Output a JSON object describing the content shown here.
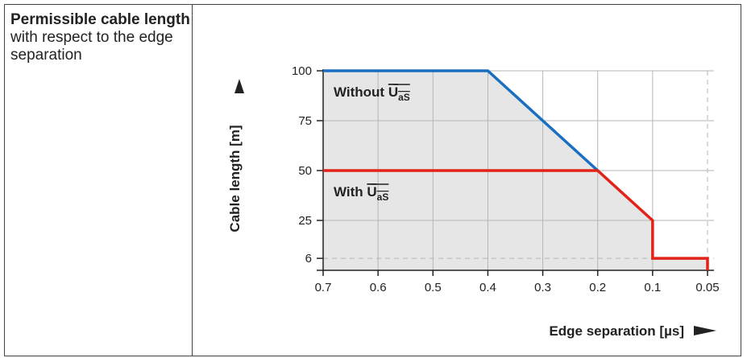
{
  "caption": {
    "title": "Permissible cable length",
    "subtitle": "with respect to the edge separation"
  },
  "chart_data": {
    "type": "line",
    "xlabel": "Edge separation [µs]",
    "ylabel": "Cable length [m]",
    "x_axis": {
      "reversed": true,
      "ticks": [
        {
          "value": 0.7,
          "label": "0.7"
        },
        {
          "value": 0.6,
          "label": "0.6"
        },
        {
          "value": 0.5,
          "label": "0.5"
        },
        {
          "value": 0.4,
          "label": "0.4"
        },
        {
          "value": 0.3,
          "label": "0.3"
        },
        {
          "value": 0.2,
          "label": "0.2"
        },
        {
          "value": 0.1,
          "label": "0.1"
        },
        {
          "value": 0.05,
          "label": "0.05"
        }
      ]
    },
    "y_axis": {
      "range": [
        0,
        100
      ],
      "ticks": [
        {
          "value": 100,
          "label": "100"
        },
        {
          "value": 75,
          "label": "75"
        },
        {
          "value": 50,
          "label": "50"
        },
        {
          "value": 25,
          "label": "25"
        },
        {
          "value": 6,
          "label": "6"
        }
      ]
    },
    "grid": true,
    "series": [
      {
        "label_main": "Without ",
        "label_overline": "U",
        "label_sub": "aS",
        "color": "#1a6fc0",
        "points": [
          {
            "x": 0.7,
            "y": 100
          },
          {
            "x": 0.4,
            "y": 100
          },
          {
            "x": 0.2,
            "y": 50
          }
        ]
      },
      {
        "label_main": "With ",
        "label_overline": "U",
        "label_sub": "aS",
        "color": "#e2231a",
        "points": [
          {
            "x": 0.7,
            "y": 50
          },
          {
            "x": 0.2,
            "y": 50
          },
          {
            "x": 0.1,
            "y": 25
          },
          {
            "x": 0.1,
            "y": 6
          },
          {
            "x": 0.05,
            "y": 6
          },
          {
            "x": 0.05,
            "y": 0
          }
        ]
      }
    ],
    "colors": {
      "area_fill": "#e6e6e6",
      "grid": "#b5b5b5",
      "axis": "#222222"
    }
  }
}
